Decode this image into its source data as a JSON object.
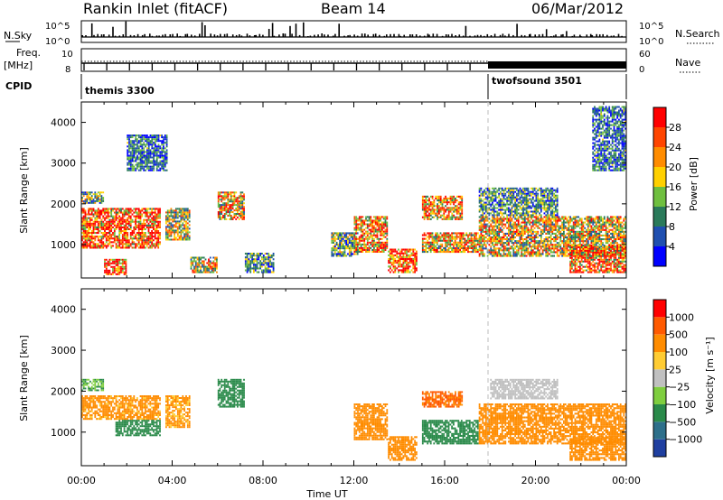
{
  "header": {
    "station": "Rankin Inlet (fitACF)",
    "beam": "Beam 14",
    "date": "06/Mar/2012"
  },
  "top_strips": {
    "nsky_label": "N.Sky",
    "nsky_ticks": [
      "10^5",
      "10^0"
    ],
    "nsearch_label": "N.Search",
    "nsearch_ticks": [
      "10^5",
      "10^0"
    ],
    "freq_label": "Freq.",
    "freq_unit": "[MHz]",
    "freq_ticks": [
      "10",
      "8"
    ],
    "nave_label": "Nave",
    "nave_ticks": [
      "60",
      "0"
    ],
    "cpid_label": "CPID",
    "cpid_modes": [
      {
        "name": "themis 3300",
        "start_hour": 0,
        "end_hour": 18
      },
      {
        "name": "twofsound 3501",
        "start_hour": 18,
        "end_hour": 24
      }
    ]
  },
  "chart_data": [
    {
      "type": "heatmap",
      "name": "power",
      "ylabel": "Slant Range [km]",
      "ylim": [
        180,
        4500
      ],
      "yticks": [
        1000,
        2000,
        3000,
        4000
      ],
      "xlim": [
        0,
        24
      ],
      "colorbar": {
        "label": "Power [dB]",
        "ticks": [
          "4",
          "8",
          "12",
          "16",
          "20",
          "24",
          "28"
        ],
        "colors": [
          "#0000ff",
          "#1f4fb0",
          "#2a7a5a",
          "#6fbf3f",
          "#ffd000",
          "#ff8c00",
          "#ff4500",
          "#ff0000"
        ]
      },
      "echo_regions": [
        {
          "h0": 0.0,
          "h1": 3.5,
          "r0": 900,
          "r1": 1900,
          "level": 26
        },
        {
          "h0": 0.0,
          "h1": 1.0,
          "r0": 2000,
          "r1": 2300,
          "level": 14
        },
        {
          "h0": 1.0,
          "h1": 2.0,
          "r0": 250,
          "r1": 650,
          "level": 28
        },
        {
          "h0": 2.0,
          "h1": 3.8,
          "r0": 2800,
          "r1": 3700,
          "level": 8
        },
        {
          "h0": 3.7,
          "h1": 4.8,
          "r0": 1100,
          "r1": 1900,
          "level": 16
        },
        {
          "h0": 4.8,
          "h1": 6.0,
          "r0": 300,
          "r1": 700,
          "level": 18
        },
        {
          "h0": 6.0,
          "h1": 7.2,
          "r0": 1600,
          "r1": 2300,
          "level": 20
        },
        {
          "h0": 7.2,
          "h1": 8.5,
          "r0": 300,
          "r1": 800,
          "level": 10
        },
        {
          "h0": 11.0,
          "h1": 12.2,
          "r0": 700,
          "r1": 1300,
          "level": 12
        },
        {
          "h0": 12.0,
          "h1": 13.5,
          "r0": 800,
          "r1": 1700,
          "level": 22
        },
        {
          "h0": 13.5,
          "h1": 14.8,
          "r0": 300,
          "r1": 900,
          "level": 28
        },
        {
          "h0": 15.0,
          "h1": 16.8,
          "r0": 1600,
          "r1": 2200,
          "level": 22
        },
        {
          "h0": 15.0,
          "h1": 17.5,
          "r0": 800,
          "r1": 1300,
          "level": 20
        },
        {
          "h0": 17.5,
          "h1": 24.0,
          "r0": 700,
          "r1": 1700,
          "level": 18
        },
        {
          "h0": 17.5,
          "h1": 21.0,
          "r0": 1700,
          "r1": 2400,
          "level": 10
        },
        {
          "h0": 21.5,
          "h1": 24.0,
          "r0": 300,
          "r1": 1000,
          "level": 24
        },
        {
          "h0": 22.5,
          "h1": 24.0,
          "r0": 2800,
          "r1": 4400,
          "level": 8
        }
      ]
    },
    {
      "type": "heatmap",
      "name": "velocity",
      "ylabel": "Slant Range [km]",
      "xlabel": "Time UT",
      "ylim": [
        180,
        4500
      ],
      "yticks": [
        1000,
        2000,
        3000,
        4000
      ],
      "xlim": [
        0,
        24
      ],
      "xticks": [
        "00:00",
        "04:00",
        "08:00",
        "12:00",
        "16:00",
        "20:00",
        "00:00"
      ],
      "colorbar": {
        "label": "Velocity [m s⁻¹]",
        "ticks": [
          "1000",
          "500",
          "100",
          "25",
          "−25",
          "−100",
          "−500",
          "−1000"
        ],
        "colors": [
          "#1f3fa0",
          "#2d6f8a",
          "#2a8a4a",
          "#7fce3f",
          "#c0c0c0",
          "#ffcc33",
          "#ff8c00",
          "#ff5a00",
          "#ff0000"
        ]
      },
      "echo_regions": [
        {
          "h0": 0.0,
          "h1": 3.5,
          "r0": 1300,
          "r1": 1900,
          "level": -150
        },
        {
          "h0": 0.0,
          "h1": 1.0,
          "r0": 2000,
          "r1": 2300,
          "level": 100
        },
        {
          "h0": 1.5,
          "h1": 3.5,
          "r0": 900,
          "r1": 1300,
          "level": 300
        },
        {
          "h0": 3.7,
          "h1": 4.8,
          "r0": 1100,
          "r1": 1900,
          "level": -120
        },
        {
          "h0": 6.0,
          "h1": 7.2,
          "r0": 1600,
          "r1": 2300,
          "level": 200
        },
        {
          "h0": 12.0,
          "h1": 13.5,
          "r0": 800,
          "r1": 1700,
          "level": -300
        },
        {
          "h0": 13.5,
          "h1": 14.8,
          "r0": 300,
          "r1": 900,
          "level": -200
        },
        {
          "h0": 15.0,
          "h1": 16.8,
          "r0": 1600,
          "r1": 2000,
          "level": -600
        },
        {
          "h0": 15.0,
          "h1": 17.5,
          "r0": 700,
          "r1": 1300,
          "level": 300
        },
        {
          "h0": 17.5,
          "h1": 24.0,
          "r0": 700,
          "r1": 1700,
          "level": -250
        },
        {
          "h0": 18.0,
          "h1": 21.0,
          "r0": 1800,
          "r1": 2300,
          "level": 0
        },
        {
          "h0": 21.5,
          "h1": 24.0,
          "r0": 300,
          "r1": 900,
          "level": -200
        }
      ]
    }
  ]
}
